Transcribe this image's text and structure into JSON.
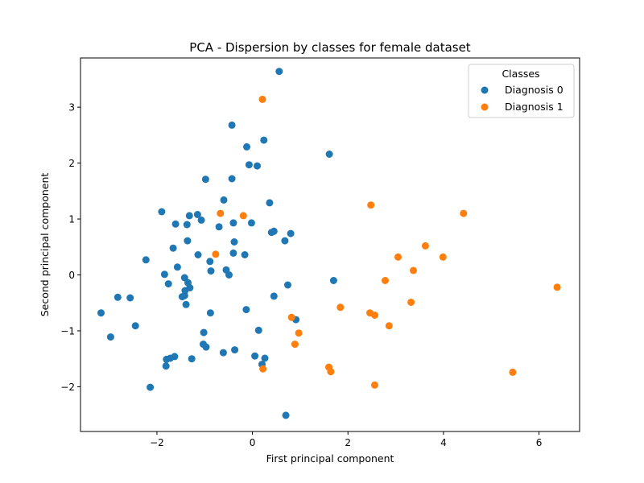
{
  "chart_data": {
    "type": "scatter",
    "title": "PCA - Dispersion by classes for female dataset",
    "xlabel": "First principal component",
    "ylabel": "Second principal component",
    "xlim": [
      -3.6,
      6.85
    ],
    "ylim": [
      -2.8,
      3.88
    ],
    "xticks": [
      -2,
      0,
      2,
      4,
      6
    ],
    "yticks": [
      -2,
      -1,
      0,
      1,
      2,
      3
    ],
    "grid": false,
    "legend": {
      "title": "Classes",
      "position": "top-right"
    },
    "series": [
      {
        "name": "Diagnosis 0",
        "color": "#1f77b4",
        "points": [
          [
            0.56,
            3.64
          ],
          [
            -0.43,
            2.68
          ],
          [
            0.24,
            2.41
          ],
          [
            -0.12,
            2.29
          ],
          [
            1.61,
            2.16
          ],
          [
            -0.07,
            1.97
          ],
          [
            0.1,
            1.95
          ],
          [
            -0.98,
            1.71
          ],
          [
            -0.43,
            1.72
          ],
          [
            -0.6,
            1.34
          ],
          [
            0.36,
            1.29
          ],
          [
            -1.9,
            1.13
          ],
          [
            -1.32,
            1.06
          ],
          [
            -1.15,
            1.08
          ],
          [
            -1.07,
            0.98
          ],
          [
            -0.4,
            0.93
          ],
          [
            -0.02,
            0.93
          ],
          [
            -1.61,
            0.91
          ],
          [
            -1.37,
            0.9
          ],
          [
            -0.7,
            0.86
          ],
          [
            0.45,
            0.78
          ],
          [
            0.4,
            0.76
          ],
          [
            0.8,
            0.74
          ],
          [
            -1.36,
            0.61
          ],
          [
            -0.38,
            0.59
          ],
          [
            0.68,
            0.61
          ],
          [
            -1.66,
            0.48
          ],
          [
            -0.4,
            0.39
          ],
          [
            -1.14,
            0.36
          ],
          [
            -0.16,
            0.36
          ],
          [
            -2.23,
            0.27
          ],
          [
            -0.89,
            0.24
          ],
          [
            -1.57,
            0.14
          ],
          [
            -0.55,
            0.09
          ],
          [
            -0.87,
            0.07
          ],
          [
            -1.84,
            0.01
          ],
          [
            -0.49,
            0.0
          ],
          [
            -1.42,
            -0.05
          ],
          [
            1.7,
            -0.1
          ],
          [
            -1.35,
            -0.14
          ],
          [
            -1.76,
            -0.16
          ],
          [
            0.74,
            -0.18
          ],
          [
            -1.31,
            -0.23
          ],
          [
            -1.41,
            -0.28
          ],
          [
            -2.82,
            -0.4
          ],
          [
            -2.56,
            -0.41
          ],
          [
            -1.47,
            -0.39
          ],
          [
            -1.42,
            -0.37
          ],
          [
            0.45,
            -0.38
          ],
          [
            -1.39,
            -0.53
          ],
          [
            -0.13,
            -0.62
          ],
          [
            -3.17,
            -0.68
          ],
          [
            -0.88,
            -0.68
          ],
          [
            0.91,
            -0.8
          ],
          [
            -2.45,
            -0.91
          ],
          [
            0.13,
            -0.99
          ],
          [
            -1.02,
            -1.03
          ],
          [
            -2.97,
            -1.11
          ],
          [
            -1.03,
            -1.24
          ],
          [
            -0.97,
            -1.29
          ],
          [
            -0.37,
            -1.34
          ],
          [
            -0.61,
            -1.39
          ],
          [
            0.05,
            -1.45
          ],
          [
            -1.63,
            -1.46
          ],
          [
            -1.72,
            -1.49
          ],
          [
            -1.8,
            -1.51
          ],
          [
            0.26,
            -1.49
          ],
          [
            -1.27,
            -1.5
          ],
          [
            0.2,
            -1.6
          ],
          [
            -1.81,
            -1.63
          ],
          [
            -2.14,
            -2.01
          ],
          [
            0.7,
            -2.51
          ]
        ]
      },
      {
        "name": "Diagnosis 1",
        "color": "#ff7f0e",
        "points": [
          [
            0.21,
            3.14
          ],
          [
            2.48,
            1.25
          ],
          [
            4.42,
            1.1
          ],
          [
            -0.67,
            1.1
          ],
          [
            -0.19,
            1.06
          ],
          [
            3.62,
            0.52
          ],
          [
            -0.77,
            0.37
          ],
          [
            3.05,
            0.32
          ],
          [
            3.99,
            0.32
          ],
          [
            3.37,
            0.08
          ],
          [
            2.78,
            -0.1
          ],
          [
            6.38,
            -0.22
          ],
          [
            3.32,
            -0.49
          ],
          [
            1.84,
            -0.58
          ],
          [
            2.46,
            -0.68
          ],
          [
            2.56,
            -0.72
          ],
          [
            0.82,
            -0.76
          ],
          [
            2.86,
            -0.91
          ],
          [
            0.97,
            -1.04
          ],
          [
            0.89,
            -1.24
          ],
          [
            1.6,
            -1.65
          ],
          [
            0.22,
            -1.68
          ],
          [
            1.64,
            -1.73
          ],
          [
            5.45,
            -1.74
          ],
          [
            2.56,
            -1.97
          ]
        ]
      }
    ]
  }
}
